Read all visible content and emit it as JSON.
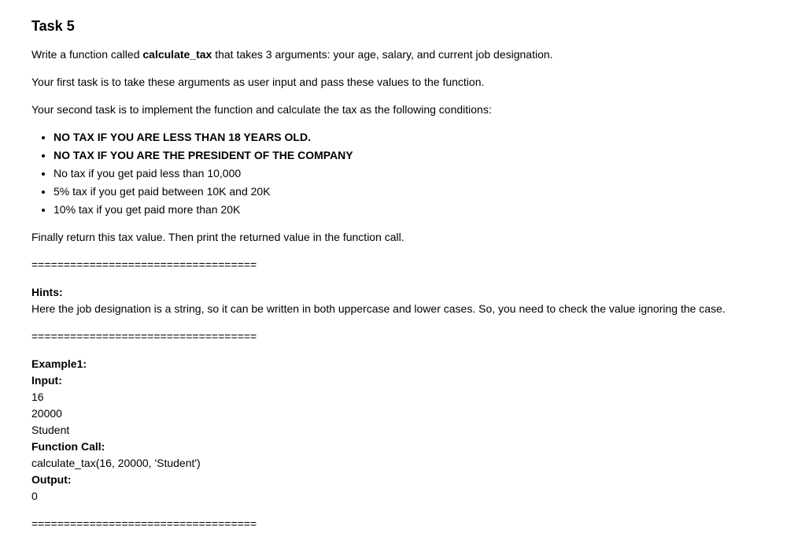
{
  "title": "Task 5",
  "intro": {
    "p1_prefix": "Write a function called ",
    "p1_bold": "calculate_tax",
    "p1_suffix": " that takes 3 arguments: your age, salary, and current job designation.",
    "p2": "Your first task is to take these arguments as user input and pass these values to the function.",
    "p3": "Your second task is to implement the function and calculate the tax as the following conditions:"
  },
  "conditions": {
    "c1": "NO TAX IF YOU ARE LESS THAN 18 YEARS OLD.",
    "c2": "NO TAX IF YOU ARE THE PRESIDENT OF THE COMPANY",
    "c3": "No tax if you get paid less than 10,000",
    "c4": "5% tax if you get paid between 10K and 20K",
    "c5": "10% tax if you get paid more than 20K"
  },
  "finally": "Finally return this tax value. Then print the returned value in the function call.",
  "separator": "===================================",
  "hints": {
    "label": "Hints:",
    "text": "Here the job designation is a string, so it can be written in both uppercase and lower cases. So, you need to check the value ignoring the case."
  },
  "example": {
    "title": "Example1:",
    "input_label": "Input:",
    "in1": "16",
    "in2": "20000",
    "in3": "Student",
    "call_label": "Function Call:",
    "call": "calculate_tax(16, 20000, 'Student')",
    "output_label": "Output:",
    "out": "0"
  }
}
